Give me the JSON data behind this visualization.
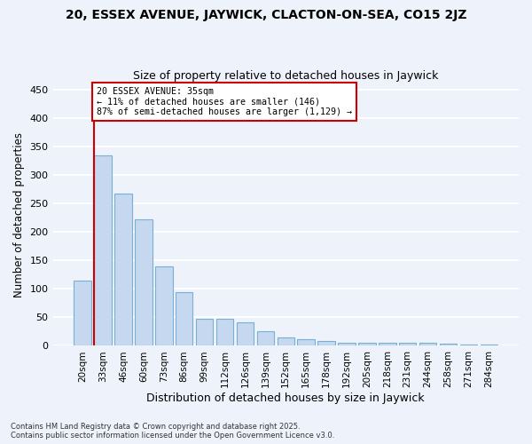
{
  "title1": "20, ESSEX AVENUE, JAYWICK, CLACTON-ON-SEA, CO15 2JZ",
  "title2": "Size of property relative to detached houses in Jaywick",
  "xlabel": "Distribution of detached houses by size in Jaywick",
  "ylabel": "Number of detached properties",
  "bar_labels": [
    "20sqm",
    "33sqm",
    "46sqm",
    "60sqm",
    "73sqm",
    "86sqm",
    "99sqm",
    "112sqm",
    "126sqm",
    "139sqm",
    "152sqm",
    "165sqm",
    "178sqm",
    "192sqm",
    "205sqm",
    "218sqm",
    "231sqm",
    "244sqm",
    "258sqm",
    "271sqm",
    "284sqm"
  ],
  "bar_heights": [
    115,
    335,
    268,
    222,
    140,
    94,
    47,
    47,
    42,
    25,
    15,
    12,
    9,
    6,
    5,
    5,
    5,
    5,
    4,
    3,
    3
  ],
  "bar_color": "#c5d8f0",
  "bar_edgecolor": "#7aafd4",
  "annotation_text": "20 ESSEX AVENUE: 35sqm\n← 11% of detached houses are smaller (146)\n87% of semi-detached houses are larger (1,129) →",
  "annotation_box_color": "#ffffff",
  "annotation_border_color": "#cc0000",
  "red_line_color": "#cc0000",
  "ylim": [
    0,
    460
  ],
  "yticks": [
    0,
    50,
    100,
    150,
    200,
    250,
    300,
    350,
    400,
    450
  ],
  "footer_line1": "Contains HM Land Registry data © Crown copyright and database right 2025.",
  "footer_line2": "Contains public sector information licensed under the Open Government Licence v3.0.",
  "bg_color": "#eef2fa",
  "grid_color": "#ffffff"
}
